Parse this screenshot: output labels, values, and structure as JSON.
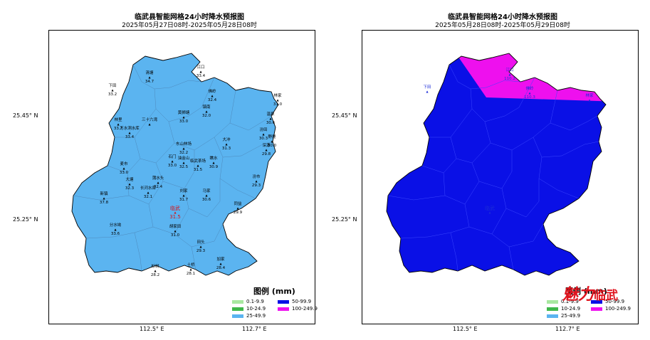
{
  "maps": [
    {
      "title": "临武县智能网格24小时降水预报图",
      "subtitle": "2025年05月27日08时-2025年05月28日08时",
      "fill_color": "#5bb4f0",
      "highlight_region": null,
      "lat_labels": [
        "25.45° N",
        "25.25° N"
      ],
      "lon_labels": [
        "112.5° E",
        "112.7° E"
      ],
      "stations": [
        {
          "name": "清塘",
          "value": "34.7"
        },
        {
          "name": "江口",
          "value": "33.4"
        },
        {
          "name": "下田",
          "value": "33.2"
        },
        {
          "name": "佛岭",
          "value": "32.4"
        },
        {
          "name": "镇南",
          "value": "32.0"
        },
        {
          "name": "黄狮塘",
          "value": "33.0"
        },
        {
          "name": "林家",
          "value": "31.0"
        },
        {
          "name": "温泉",
          "value": "30.6"
        },
        {
          "name": "林里",
          "value": "33.7"
        },
        {
          "name": "三十六湾",
          "value": ""
        },
        {
          "name": "万水洞水库",
          "value": "33.4"
        },
        {
          "name": "汾田",
          "value": "30.3"
        },
        {
          "name": "野鹿",
          "value": "30.0"
        },
        {
          "name": "东山林场",
          "value": "32.2"
        },
        {
          "name": "大冲",
          "value": "31.3"
        },
        {
          "name": "深源",
          "value": "29.8"
        },
        {
          "name": "石门",
          "value": "33.0"
        },
        {
          "name": "油金山",
          "value": "32.5"
        },
        {
          "name": "临武茶场",
          "value": "31.5"
        },
        {
          "name": "麦市",
          "value": "33.0"
        },
        {
          "name": "瞧水",
          "value": "30.9"
        },
        {
          "name": "大塘",
          "value": "32.3"
        },
        {
          "name": "蒲水头",
          "value": "32.4"
        },
        {
          "name": "长河水库",
          "value": "32.1"
        },
        {
          "name": "汾市",
          "value": "29.3"
        },
        {
          "name": "新镇",
          "value": "37.8"
        },
        {
          "name": "刘家",
          "value": "31.7"
        },
        {
          "name": "马家",
          "value": "30.6"
        },
        {
          "name": "同益",
          "value": "29.9"
        },
        {
          "name": "临武",
          "value": "31.5"
        },
        {
          "name": "分水坳",
          "value": "33.6"
        },
        {
          "name": "胡家田",
          "value": "31.0"
        },
        {
          "name": "田头",
          "value": "29.3"
        },
        {
          "name": "加家",
          "value": "28.4"
        },
        {
          "name": "杉树",
          "value": "28.2"
        },
        {
          "name": "土桥",
          "value": "28.1"
        }
      ]
    },
    {
      "title": "临武县智能网格24小时降水预报图",
      "subtitle": "2025年05月28日08时-2025年05月29日08时",
      "fill_color": "#0a10e6",
      "highlight_region": "#ee10ee",
      "lat_labels": [
        "25.45° N",
        "25.25° N"
      ],
      "lon_labels": [
        "112.5° E",
        "112.7° E"
      ],
      "stations": [
        {
          "name": "江口",
          "value": "110.2"
        },
        {
          "name": "下田",
          "value": ""
        },
        {
          "name": "佛岭",
          "value": "110.3"
        },
        {
          "name": "林家",
          "value": ""
        },
        {
          "name": "临武",
          "value": ""
        }
      ]
    }
  ],
  "legend": {
    "title": "图例 (mm)",
    "items": [
      {
        "label": "0.1-9.9",
        "color": "#a8e8a0"
      },
      {
        "label": "50-99.9",
        "color": "#0a10e6"
      },
      {
        "label": "10-24.9",
        "color": "#3fb84a"
      },
      {
        "label": "100-249.9",
        "color": "#ee10ee"
      },
      {
        "label": "25-49.9",
        "color": "#5bb4f0"
      }
    ]
  },
  "watermark": {
    "text1": "魅",
    "text2": "力",
    "text3": "临武"
  }
}
